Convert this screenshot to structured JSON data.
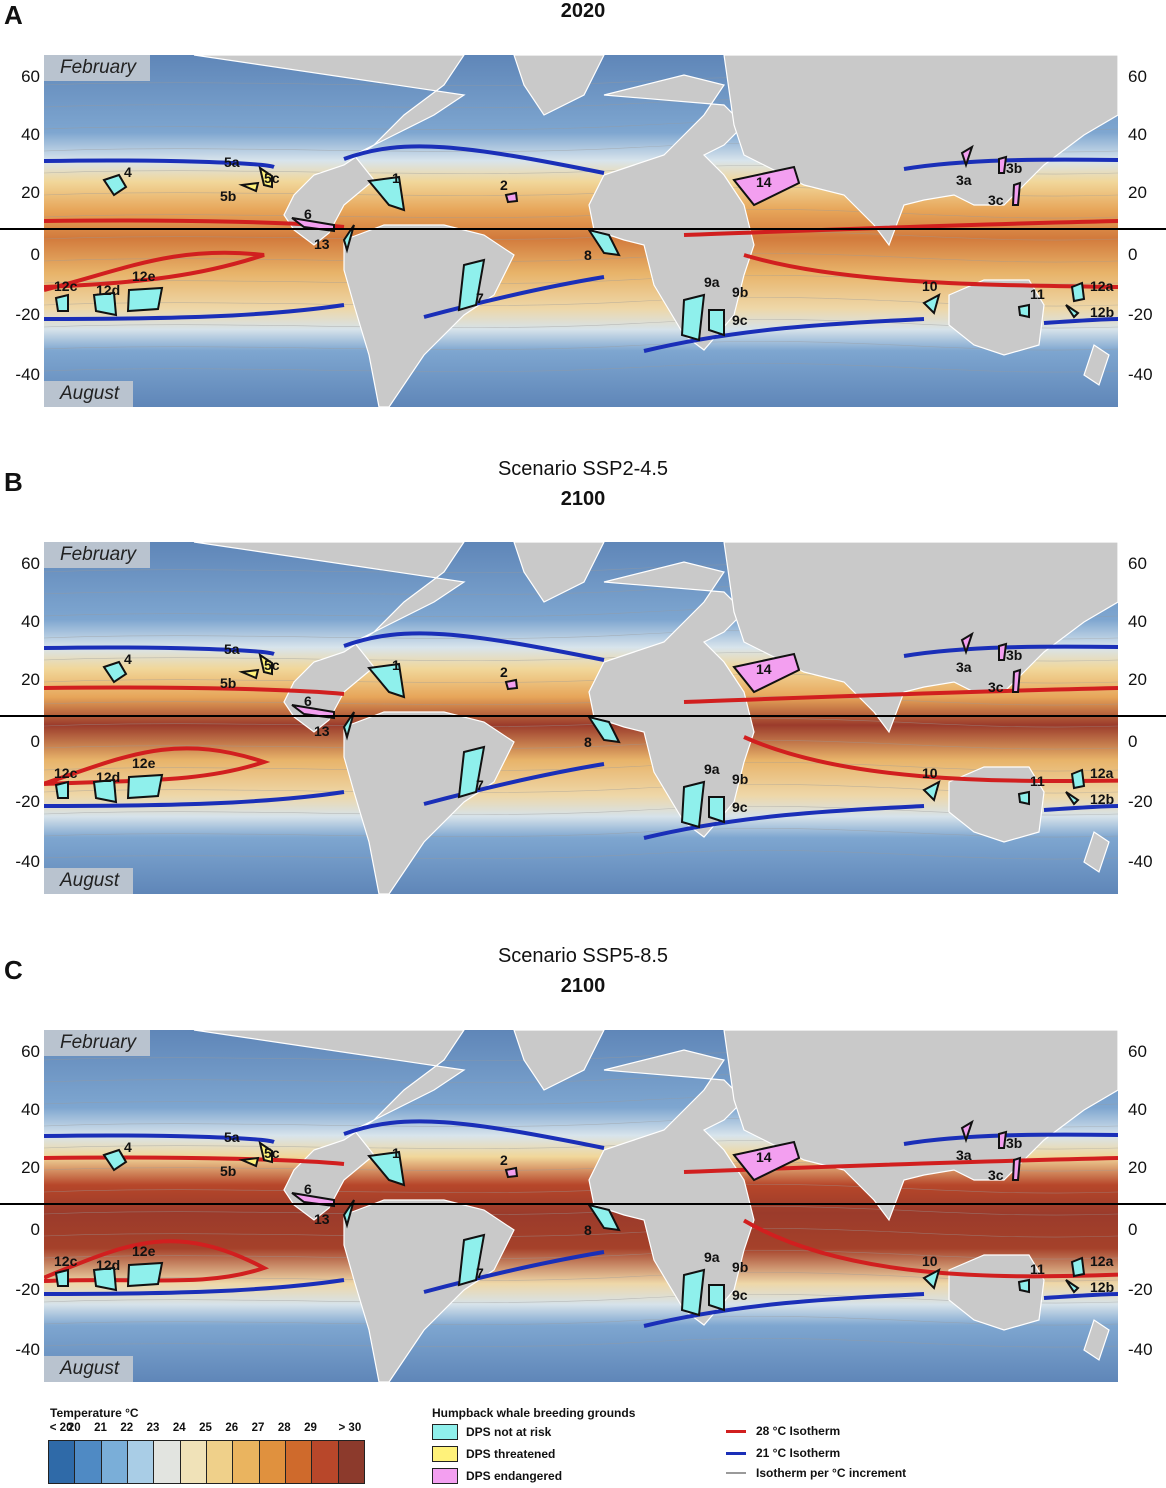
{
  "panels": [
    {
      "letter": "A",
      "scenario": "",
      "year": "2020"
    },
    {
      "letter": "B",
      "scenario": "Scenario SSP2-4.5",
      "year": "2100"
    },
    {
      "letter": "C",
      "scenario": "Scenario SSP5-8.5",
      "year": "2100"
    }
  ],
  "season_top": "February",
  "season_bottom": "August",
  "lat_ticks": [
    "60",
    "40",
    "20",
    "0",
    "-20",
    "-40"
  ],
  "region_labels": [
    "1",
    "2",
    "3a",
    "3b",
    "3c",
    "4",
    "5a",
    "5b",
    "5c",
    "6",
    "7",
    "8",
    "9a",
    "9b",
    "9c",
    "10",
    "11",
    "12a",
    "12b",
    "12c",
    "12d",
    "12e",
    "13",
    "14"
  ],
  "legend": {
    "temperature": {
      "title": "Temperature °C",
      "labels": [
        "< 20",
        "20",
        "21",
        "22",
        "23",
        "24",
        "25",
        "26",
        "27",
        "28",
        "29",
        "> 30"
      ],
      "colors": [
        "#2f6aa8",
        "#4f8ac4",
        "#7aaed8",
        "#a9cde6",
        "#e2e4e0",
        "#f0e2b8",
        "#efd08a",
        "#eab45f",
        "#e0913e",
        "#cf6a2c",
        "#b8472a",
        "#8c3a2c"
      ]
    },
    "breeding": {
      "title": "Humpback whale breeding grounds",
      "items": [
        {
          "label": "DPS not at risk",
          "color": "#8ff0ec"
        },
        {
          "label": "DPS threatened",
          "color": "#fff27a"
        },
        {
          "label": "DPS endangered",
          "color": "#f39ff0"
        }
      ]
    },
    "isotherms": [
      {
        "label": "28 °C Isotherm",
        "color": "#d11f1f"
      },
      {
        "label": "21 °C Isotherm",
        "color": "#1a2fb8"
      },
      {
        "label": "Isotherm per °C increment",
        "color": "#9a9a9a"
      }
    ]
  }
}
